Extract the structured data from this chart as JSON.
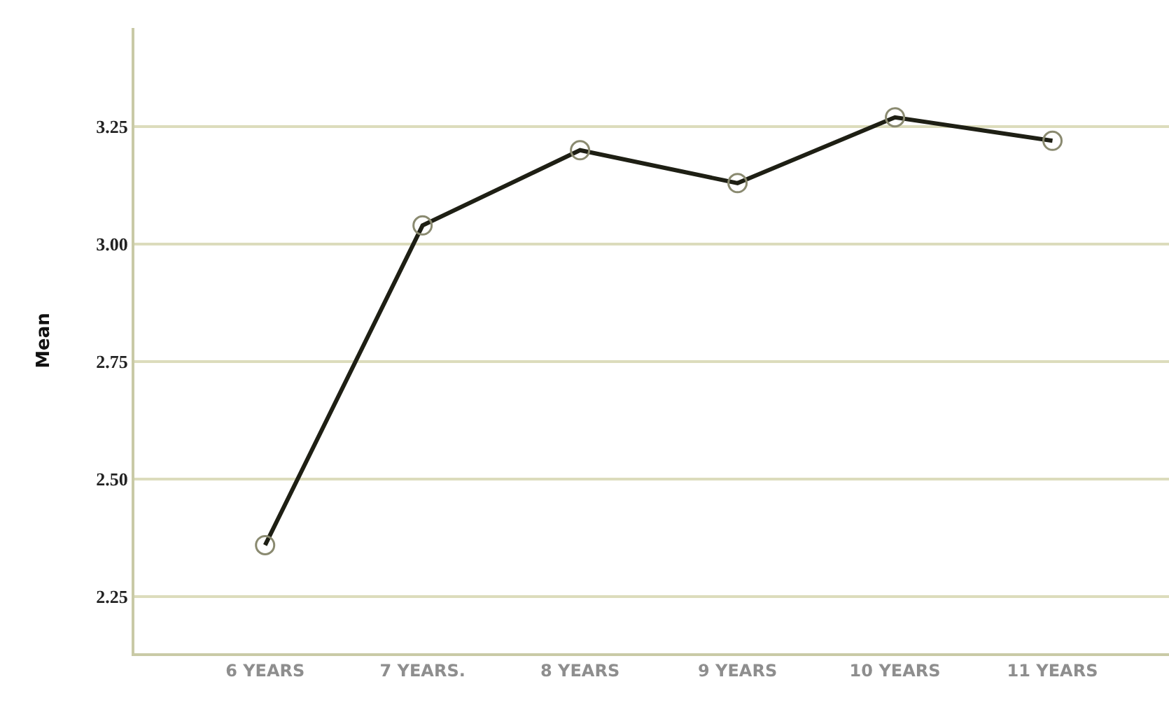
{
  "chart_data": {
    "type": "line",
    "ylabel": "Mean",
    "categories": [
      "6 YEARS",
      "7 YEARS.",
      "8 YEARS",
      "9 YEARS",
      "10 YEARS",
      "11 YEARS"
    ],
    "series": [
      {
        "color": "#1e1f14",
        "values": [
          2.36,
          3.04,
          3.2,
          3.13,
          3.27,
          3.22
        ]
      }
    ],
    "ylim": [
      2.13,
      3.46
    ],
    "yticks": [
      {
        "value": 2.25,
        "label": "2.25"
      },
      {
        "value": 2.5,
        "label": "2.50"
      },
      {
        "value": 2.75,
        "label": "2.75"
      },
      {
        "value": 3,
        "label": "3.00"
      },
      {
        "value": 3.25,
        "label": "3.25"
      }
    ],
    "grid": "y",
    "marker": "circle",
    "line_style": "solid"
  }
}
